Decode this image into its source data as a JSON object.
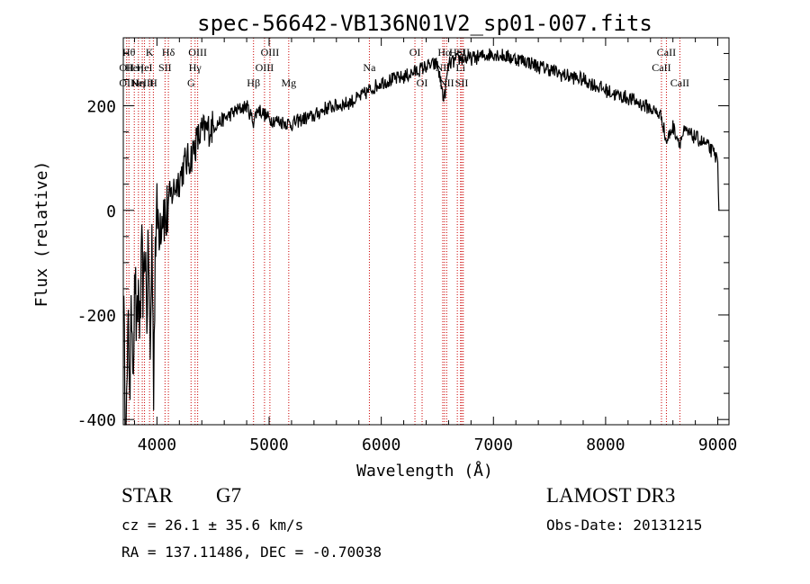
{
  "chart_data": {
    "type": "line",
    "title": "spec-56642-VB136N01V2_sp01-007.fits",
    "xlabel": "Wavelength (Å)",
    "ylabel": "Flux (relative)",
    "xlim": [
      3700,
      9100
    ],
    "ylim": [
      -410,
      330
    ],
    "xticks": [
      4000,
      5000,
      6000,
      7000,
      8000,
      9000
    ],
    "yticks": [
      -400,
      -200,
      0,
      200
    ],
    "x_minor_step": 200,
    "y_minor_step": 50,
    "line_color": "#000000",
    "marker_color": "#cc0000",
    "spectrum_anchors": [
      [
        3700,
        -140
      ],
      [
        3715,
        -350
      ],
      [
        3730,
        -380
      ],
      [
        3745,
        -230
      ],
      [
        3760,
        -330
      ],
      [
        3775,
        -180
      ],
      [
        3790,
        -280
      ],
      [
        3805,
        -120
      ],
      [
        3820,
        -260
      ],
      [
        3835,
        -150
      ],
      [
        3850,
        -230
      ],
      [
        3865,
        -90
      ],
      [
        3880,
        -170
      ],
      [
        3895,
        -60
      ],
      [
        3910,
        -200
      ],
      [
        3925,
        -60
      ],
      [
        3940,
        -300
      ],
      [
        3955,
        -40
      ],
      [
        3970,
        -330
      ],
      [
        3985,
        -60
      ],
      [
        4000,
        -10
      ],
      [
        4020,
        -20
      ],
      [
        4040,
        -5
      ],
      [
        4060,
        10
      ],
      [
        4080,
        -30
      ],
      [
        4100,
        15
      ],
      [
        4150,
        40
      ],
      [
        4200,
        60
      ],
      [
        4250,
        90
      ],
      [
        4300,
        100
      ],
      [
        4350,
        130
      ],
      [
        4400,
        150
      ],
      [
        4500,
        160
      ],
      [
        4600,
        175
      ],
      [
        4700,
        190
      ],
      [
        4800,
        200
      ],
      [
        4860,
        170
      ],
      [
        4900,
        195
      ],
      [
        5000,
        175
      ],
      [
        5100,
        170
      ],
      [
        5200,
        165
      ],
      [
        5300,
        175
      ],
      [
        5400,
        180
      ],
      [
        5500,
        195
      ],
      [
        5600,
        200
      ],
      [
        5700,
        205
      ],
      [
        5800,
        215
      ],
      [
        5900,
        230
      ],
      [
        6000,
        245
      ],
      [
        6100,
        250
      ],
      [
        6200,
        255
      ],
      [
        6300,
        265
      ],
      [
        6400,
        275
      ],
      [
        6500,
        280
      ],
      [
        6560,
        210
      ],
      [
        6600,
        280
      ],
      [
        6700,
        290
      ],
      [
        6800,
        290
      ],
      [
        6900,
        295
      ],
      [
        7000,
        300
      ],
      [
        7100,
        295
      ],
      [
        7200,
        290
      ],
      [
        7300,
        285
      ],
      [
        7400,
        275
      ],
      [
        7500,
        270
      ],
      [
        7600,
        260
      ],
      [
        7700,
        255
      ],
      [
        7800,
        250
      ],
      [
        7900,
        240
      ],
      [
        8000,
        230
      ],
      [
        8100,
        220
      ],
      [
        8200,
        215
      ],
      [
        8300,
        205
      ],
      [
        8400,
        195
      ],
      [
        8500,
        180
      ],
      [
        8540,
        130
      ],
      [
        8600,
        160
      ],
      [
        8660,
        130
      ],
      [
        8700,
        150
      ],
      [
        8800,
        140
      ],
      [
        8900,
        125
      ],
      [
        8960,
        110
      ],
      [
        9000,
        95
      ],
      [
        9010,
        0
      ]
    ],
    "lines": [
      {
        "wl": 3750,
        "labels": [
          {
            "row": 0,
            "text": "Hθ"
          }
        ]
      },
      {
        "wl": 3730,
        "labels": [
          {
            "row": 1,
            "text": "OII"
          },
          {
            "row": 2,
            "text": "OII"
          }
        ]
      },
      {
        "wl": 3798,
        "labels": [
          {
            "row": 1,
            "text": "Heη"
          }
        ]
      },
      {
        "wl": 3835,
        "labels": [
          {
            "row": 2,
            "text": "Hη"
          }
        ]
      },
      {
        "wl": 3869,
        "labels": [
          {
            "row": 2,
            "text": "NeIII"
          }
        ]
      },
      {
        "wl": 3889,
        "labels": [
          {
            "row": 1,
            "text": "HeI"
          }
        ]
      },
      {
        "wl": 3934,
        "labels": [
          {
            "row": 0,
            "text": "K"
          }
        ]
      },
      {
        "wl": 3968,
        "labels": [
          {
            "row": 2,
            "text": "H"
          }
        ]
      },
      {
        "wl": 4072,
        "labels": [
          {
            "row": 1,
            "text": "SII"
          }
        ]
      },
      {
        "wl": 4102,
        "labels": [
          {
            "row": 0,
            "text": "Hδ"
          }
        ]
      },
      {
        "wl": 4304,
        "labels": [
          {
            "row": 2,
            "text": "G"
          }
        ]
      },
      {
        "wl": 4340,
        "labels": [
          {
            "row": 1,
            "text": "Hγ"
          }
        ]
      },
      {
        "wl": 4363,
        "labels": [
          {
            "row": 0,
            "text": "OIII"
          }
        ]
      },
      {
        "wl": 4861,
        "labels": [
          {
            "row": 2,
            "text": "Hβ"
          }
        ]
      },
      {
        "wl": 4959,
        "labels": [
          {
            "row": 1,
            "text": "OIII"
          }
        ]
      },
      {
        "wl": 5007,
        "labels": [
          {
            "row": 0,
            "text": "OIII"
          }
        ]
      },
      {
        "wl": 5175,
        "labels": [
          {
            "row": 2,
            "text": "Mg"
          }
        ]
      },
      {
        "wl": 5894,
        "labels": [
          {
            "row": 1,
            "text": "Na"
          }
        ]
      },
      {
        "wl": 6300,
        "labels": [
          {
            "row": 0,
            "text": "OI"
          }
        ]
      },
      {
        "wl": 6364,
        "labels": [
          {
            "row": 2,
            "text": "OI"
          }
        ]
      },
      {
        "wl": 6548,
        "labels": [
          {
            "row": 1,
            "text": "NII"
          }
        ]
      },
      {
        "wl": 6563,
        "labels": [
          {
            "row": 0,
            "text": "Hα"
          }
        ]
      },
      {
        "wl": 6583,
        "labels": [
          {
            "row": 2,
            "text": "NII"
          }
        ]
      },
      {
        "wl": 6678,
        "labels": [
          {
            "row": 0,
            "text": "HeI"
          }
        ]
      },
      {
        "wl": 6707,
        "labels": [
          {
            "row": 1,
            "text": "Li"
          }
        ]
      },
      {
        "wl": 6717,
        "labels": [
          {
            "row": 2,
            "text": "SII"
          }
        ]
      },
      {
        "wl": 6731,
        "labels": [
          {
            "row": 0,
            "text": "SII"
          }
        ]
      },
      {
        "wl": 8498,
        "labels": [
          {
            "row": 1,
            "text": "CaII"
          }
        ]
      },
      {
        "wl": 8542,
        "labels": [
          {
            "row": 0,
            "text": "CaII"
          }
        ]
      },
      {
        "wl": 8662,
        "labels": [
          {
            "row": 2,
            "text": "CaII"
          }
        ]
      }
    ]
  },
  "info": {
    "object_class": "STAR",
    "subclass": "G7",
    "survey": "LAMOST DR3",
    "redshift": "cz = 26.1 ± 35.6 km/s",
    "obs_date": "Obs-Date: 20131215",
    "coords": "RA = 137.11486, DEC =  -0.70038"
  }
}
